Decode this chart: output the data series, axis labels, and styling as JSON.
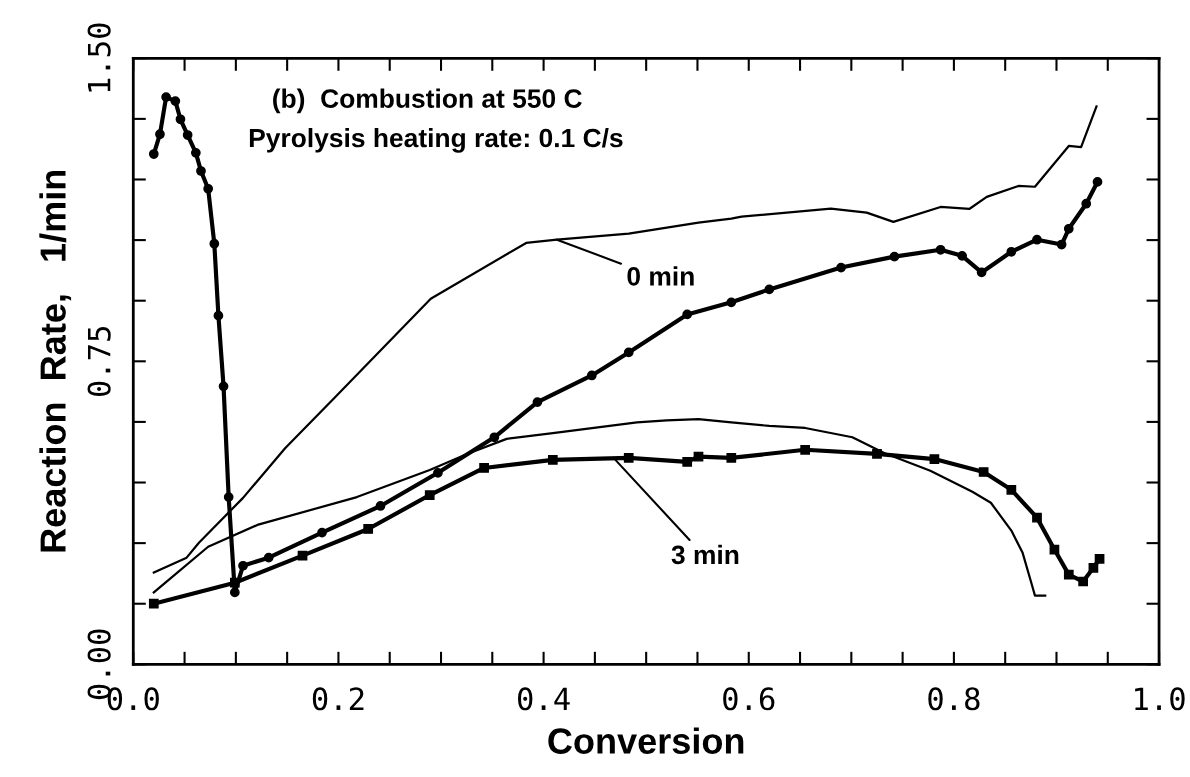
{
  "chart_data": {
    "type": "line",
    "title": "(b)  Combustion at 550 C",
    "subtitle": "Pyrolysis heating rate: 0.1 C/s",
    "xlabel": "Conversion",
    "ylabel": "Reaction  Rate,   1/min",
    "xlim": [
      0,
      1.0
    ],
    "ylim": [
      0,
      1.5
    ],
    "xticks": [
      {
        "value": 0.0,
        "label": "0.0"
      },
      {
        "value": 0.05,
        "label": null
      },
      {
        "value": 0.1,
        "label": null
      },
      {
        "value": 0.15,
        "label": null
      },
      {
        "value": 0.2,
        "label": "0.2"
      },
      {
        "value": 0.25,
        "label": null
      },
      {
        "value": 0.3,
        "label": null
      },
      {
        "value": 0.35,
        "label": null
      },
      {
        "value": 0.4,
        "label": "0.4"
      },
      {
        "value": 0.45,
        "label": null
      },
      {
        "value": 0.5,
        "label": null
      },
      {
        "value": 0.55,
        "label": null
      },
      {
        "value": 0.6,
        "label": "0.6"
      },
      {
        "value": 0.65,
        "label": null
      },
      {
        "value": 0.7,
        "label": null
      },
      {
        "value": 0.75,
        "label": null
      },
      {
        "value": 0.8,
        "label": "0.8"
      },
      {
        "value": 0.85,
        "label": null
      },
      {
        "value": 0.9,
        "label": null
      },
      {
        "value": 0.95,
        "label": null
      },
      {
        "value": 1.0,
        "label": "1.0"
      }
    ],
    "yticks": [
      {
        "value": 0.0,
        "label": "0.00"
      },
      {
        "value": 0.15,
        "label": null
      },
      {
        "value": 0.3,
        "label": null
      },
      {
        "value": 0.45,
        "label": null
      },
      {
        "value": 0.6,
        "label": null
      },
      {
        "value": 0.75,
        "label": "0.75"
      },
      {
        "value": 0.9,
        "label": null
      },
      {
        "value": 1.05,
        "label": null
      },
      {
        "value": 1.2,
        "label": null
      },
      {
        "value": 1.35,
        "label": null
      },
      {
        "value": 1.5,
        "label": "1.50"
      }
    ],
    "grid": false,
    "series": [
      {
        "color": "#000000",
        "marker": "circle",
        "x": [
          0.02,
          0.026,
          0.032,
          0.041,
          0.046,
          0.053,
          0.061,
          0.066,
          0.073,
          0.079,
          0.083,
          0.088,
          0.093,
          0.099,
          0.107,
          0.132,
          0.184,
          0.241,
          0.297,
          0.352,
          0.394,
          0.447,
          0.483,
          0.54,
          0.583,
          0.62,
          0.69,
          0.742,
          0.787,
          0.808,
          0.827,
          0.856,
          0.881,
          0.905,
          0.912,
          0.929,
          0.94
        ],
        "values": [
          1.263,
          1.312,
          1.404,
          1.394,
          1.349,
          1.31,
          1.266,
          1.221,
          1.177,
          1.041,
          0.863,
          0.688,
          0.414,
          0.178,
          0.244,
          0.264,
          0.326,
          0.392,
          0.474,
          0.562,
          0.649,
          0.715,
          0.772,
          0.866,
          0.896,
          0.928,
          0.982,
          1.009,
          1.026,
          1.011,
          0.97,
          1.021,
          1.051,
          1.039,
          1.078,
          1.14,
          1.194
        ]
      },
      {
        "color": "#000000",
        "marker": "none",
        "x": [
          0.02,
          0.052,
          0.064,
          0.107,
          0.148,
          0.196,
          0.29,
          0.383,
          0.413,
          0.483,
          0.551,
          0.583,
          0.593,
          0.68,
          0.715,
          0.741,
          0.787,
          0.815,
          0.832,
          0.863,
          0.879,
          0.912,
          0.924,
          0.939
        ],
        "values": [
          0.227,
          0.264,
          0.301,
          0.412,
          0.535,
          0.659,
          0.905,
          1.043,
          1.051,
          1.066,
          1.093,
          1.103,
          1.108,
          1.128,
          1.118,
          1.095,
          1.132,
          1.127,
          1.157,
          1.184,
          1.182,
          1.283,
          1.28,
          1.381
        ]
      },
      {
        "color": "#000000",
        "marker": "none",
        "x": [
          0.02,
          0.073,
          0.121,
          0.218,
          0.289,
          0.326,
          0.364,
          0.409,
          0.491,
          0.52,
          0.551,
          0.583,
          0.62,
          0.655,
          0.701,
          0.732,
          0.777,
          0.818,
          0.836,
          0.856,
          0.867,
          0.876,
          0.879,
          0.889
        ],
        "values": [
          0.178,
          0.291,
          0.345,
          0.414,
          0.481,
          0.521,
          0.558,
          0.572,
          0.599,
          0.604,
          0.607,
          0.599,
          0.59,
          0.585,
          0.562,
          0.523,
          0.479,
          0.427,
          0.4,
          0.331,
          0.276,
          0.197,
          0.17,
          0.17
        ]
      },
      {
        "color": "#000000",
        "marker": "square",
        "x": [
          0.02,
          0.099,
          0.165,
          0.229,
          0.289,
          0.342,
          0.409,
          0.483,
          0.54,
          0.551,
          0.583,
          0.655,
          0.725,
          0.781,
          0.829,
          0.856,
          0.881,
          0.898,
          0.912,
          0.926,
          0.936,
          0.942
        ],
        "values": [
          0.15,
          0.202,
          0.269,
          0.335,
          0.419,
          0.486,
          0.506,
          0.511,
          0.501,
          0.514,
          0.511,
          0.531,
          0.521,
          0.508,
          0.476,
          0.432,
          0.363,
          0.284,
          0.222,
          0.205,
          0.239,
          0.261
        ]
      }
    ],
    "annotations": [
      {
        "text": "0 min",
        "x": 0.413,
        "y": 1.051
      },
      {
        "text": "3 min",
        "x": 0.47,
        "y": 0.506
      }
    ]
  }
}
